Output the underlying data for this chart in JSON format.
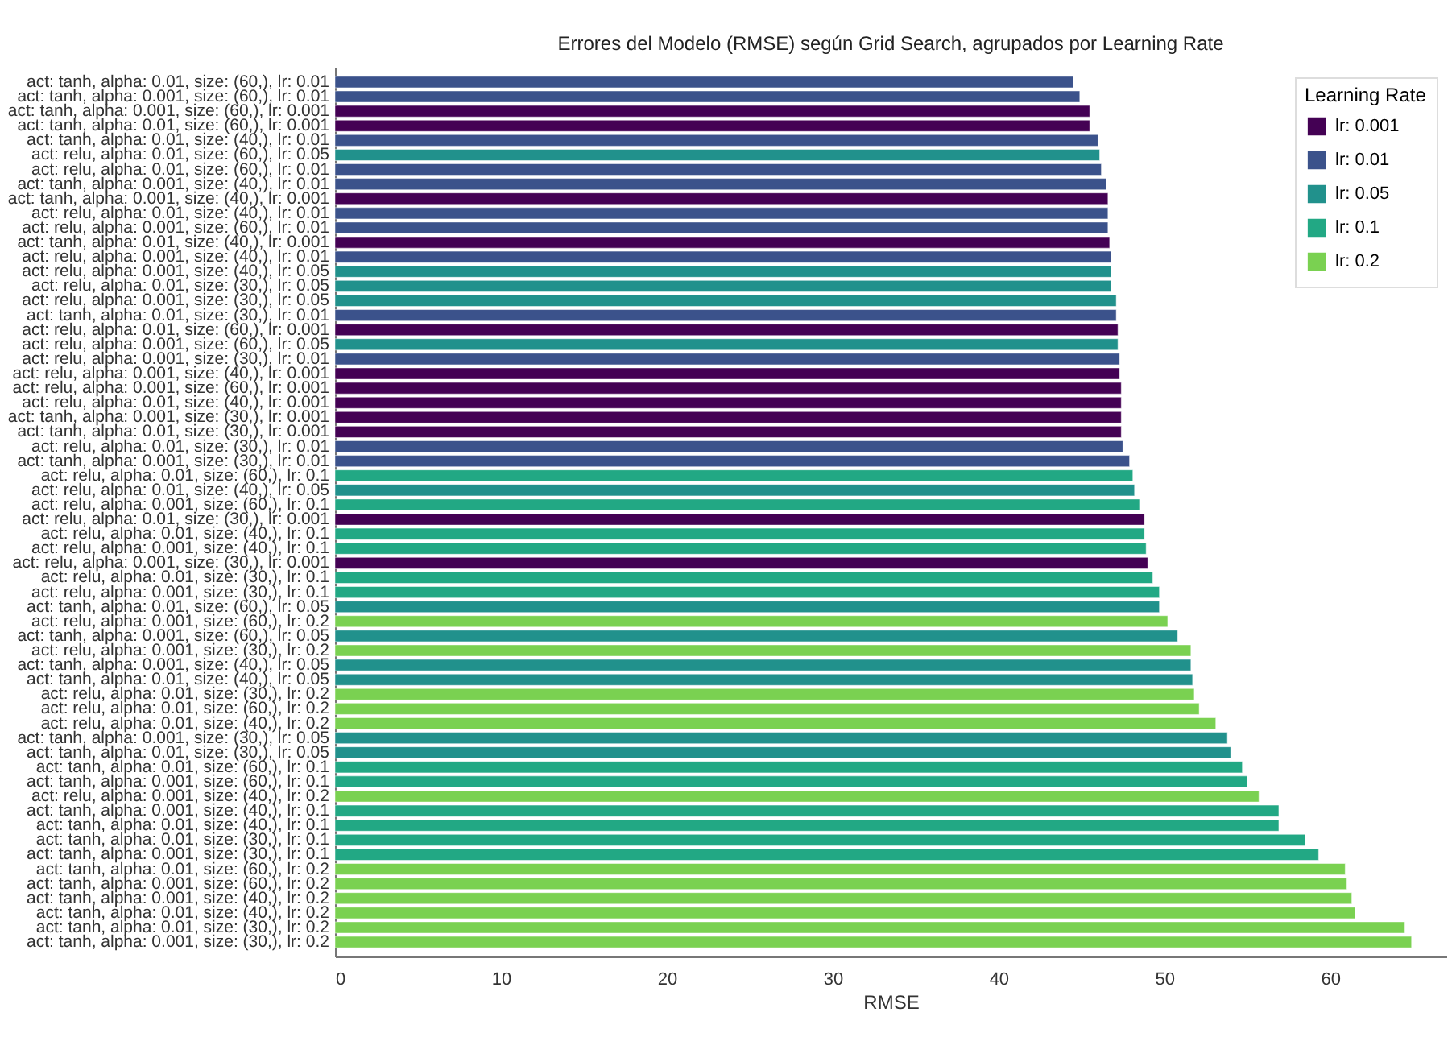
{
  "chart_data": {
    "type": "bar",
    "orientation": "horizontal",
    "title": "Errores del Modelo (RMSE) según Grid Search, agrupados por Learning Rate",
    "xlabel": "RMSE",
    "legend_title": "Learning Rate",
    "legend": "top right",
    "grid": false,
    "categories": [
      "act: tanh, alpha: 0.01, size: (60,), lr: 0.01",
      "act: tanh, alpha: 0.001, size: (60,), lr: 0.01",
      "act: tanh, alpha: 0.001, size: (60,), lr: 0.001",
      "act: tanh, alpha: 0.01, size: (60,), lr: 0.001",
      "act: tanh, alpha: 0.01, size: (40,), lr: 0.01",
      "act: relu, alpha: 0.01, size: (60,), lr: 0.05",
      "act: relu, alpha: 0.01, size: (60,), lr: 0.01",
      "act: tanh, alpha: 0.001, size: (40,), lr: 0.01",
      "act: tanh, alpha: 0.001, size: (40,), lr: 0.001",
      "act: relu, alpha: 0.01, size: (40,), lr: 0.01",
      "act: relu, alpha: 0.001, size: (60,), lr: 0.01",
      "act: tanh, alpha: 0.01, size: (40,), lr: 0.001",
      "act: relu, alpha: 0.001, size: (40,), lr: 0.01",
      "act: relu, alpha: 0.001, size: (40,), lr: 0.05",
      "act: relu, alpha: 0.01, size: (30,), lr: 0.05",
      "act: relu, alpha: 0.001, size: (30,), lr: 0.05",
      "act: tanh, alpha: 0.01, size: (30,), lr: 0.01",
      "act: relu, alpha: 0.01, size: (60,), lr: 0.001",
      "act: relu, alpha: 0.001, size: (60,), lr: 0.05",
      "act: relu, alpha: 0.001, size: (30,), lr: 0.01",
      "act: relu, alpha: 0.001, size: (40,), lr: 0.001",
      "act: relu, alpha: 0.001, size: (60,), lr: 0.001",
      "act: relu, alpha: 0.01, size: (40,), lr: 0.001",
      "act: tanh, alpha: 0.001, size: (30,), lr: 0.001",
      "act: tanh, alpha: 0.01, size: (30,), lr: 0.001",
      "act: relu, alpha: 0.01, size: (30,), lr: 0.01",
      "act: tanh, alpha: 0.001, size: (30,), lr: 0.01",
      "act: relu, alpha: 0.01, size: (60,), lr: 0.1",
      "act: relu, alpha: 0.01, size: (40,), lr: 0.05",
      "act: relu, alpha: 0.001, size: (60,), lr: 0.1",
      "act: relu, alpha: 0.01, size: (30,), lr: 0.001",
      "act: relu, alpha: 0.01, size: (40,), lr: 0.1",
      "act: relu, alpha: 0.001, size: (40,), lr: 0.1",
      "act: relu, alpha: 0.001, size: (30,), lr: 0.001",
      "act: relu, alpha: 0.01, size: (30,), lr: 0.1",
      "act: relu, alpha: 0.001, size: (30,), lr: 0.1",
      "act: tanh, alpha: 0.01, size: (60,), lr: 0.05",
      "act: relu, alpha: 0.001, size: (60,), lr: 0.2",
      "act: tanh, alpha: 0.001, size: (60,), lr: 0.05",
      "act: relu, alpha: 0.001, size: (30,), lr: 0.2",
      "act: tanh, alpha: 0.001, size: (40,), lr: 0.05",
      "act: tanh, alpha: 0.01, size: (40,), lr: 0.05",
      "act: relu, alpha: 0.01, size: (30,), lr: 0.2",
      "act: relu, alpha: 0.01, size: (60,), lr: 0.2",
      "act: relu, alpha: 0.01, size: (40,), lr: 0.2",
      "act: tanh, alpha: 0.001, size: (30,), lr: 0.05",
      "act: tanh, alpha: 0.01, size: (30,), lr: 0.05",
      "act: tanh, alpha: 0.01, size: (60,), lr: 0.1",
      "act: tanh, alpha: 0.001, size: (60,), lr: 0.1",
      "act: relu, alpha: 0.001, size: (40,), lr: 0.2",
      "act: tanh, alpha: 0.001, size: (40,), lr: 0.1",
      "act: tanh, alpha: 0.01, size: (40,), lr: 0.1",
      "act: tanh, alpha: 0.01, size: (30,), lr: 0.1",
      "act: tanh, alpha: 0.001, size: (30,), lr: 0.1",
      "act: tanh, alpha: 0.01, size: (60,), lr: 0.2",
      "act: tanh, alpha: 0.001, size: (60,), lr: 0.2",
      "act: tanh, alpha: 0.001, size: (40,), lr: 0.2",
      "act: tanh, alpha: 0.01, size: (40,), lr: 0.2",
      "act: tanh, alpha: 0.01, size: (30,), lr: 0.2",
      "act: tanh, alpha: 0.001, size: (30,), lr: 0.2"
    ],
    "series": [
      {
        "name": "lr: 0.001",
        "color": "#440154",
        "values": [
          null,
          null,
          45.5,
          45.5,
          null,
          null,
          null,
          null,
          46.6,
          null,
          null,
          46.7,
          null,
          null,
          null,
          null,
          null,
          47.2,
          null,
          null,
          47.3,
          47.4,
          47.4,
          47.4,
          47.4,
          null,
          null,
          null,
          null,
          null,
          48.8,
          null,
          null,
          49.0,
          null,
          null,
          null,
          null,
          null,
          null,
          null,
          null,
          null,
          null,
          null,
          null,
          null,
          null,
          null,
          null,
          null,
          null,
          null,
          null,
          null,
          null,
          null,
          null,
          null,
          null
        ]
      },
      {
        "name": "lr: 0.01",
        "color": "#3b528b",
        "values": [
          44.5,
          44.9,
          null,
          null,
          46.0,
          null,
          46.2,
          46.5,
          null,
          46.6,
          46.6,
          null,
          46.8,
          null,
          null,
          null,
          47.1,
          null,
          null,
          47.3,
          null,
          null,
          null,
          null,
          null,
          47.5,
          47.9,
          null,
          null,
          null,
          null,
          null,
          null,
          null,
          null,
          null,
          null,
          null,
          null,
          null,
          null,
          null,
          null,
          null,
          null,
          null,
          null,
          null,
          null,
          null,
          null,
          null,
          null,
          null,
          null,
          null,
          null,
          null,
          null,
          null
        ]
      },
      {
        "name": "lr: 0.05",
        "color": "#21918c",
        "values": [
          null,
          null,
          null,
          null,
          null,
          46.1,
          null,
          null,
          null,
          null,
          null,
          null,
          null,
          46.8,
          46.8,
          47.1,
          null,
          null,
          47.2,
          null,
          null,
          null,
          null,
          null,
          null,
          null,
          null,
          null,
          48.2,
          null,
          null,
          null,
          null,
          null,
          null,
          null,
          49.7,
          null,
          50.8,
          null,
          51.6,
          51.7,
          null,
          null,
          null,
          53.8,
          54.0,
          null,
          null,
          null,
          null,
          null,
          null,
          null,
          null,
          null,
          null,
          null,
          null,
          null
        ]
      },
      {
        "name": "lr: 0.1",
        "color": "#22a884",
        "values": [
          null,
          null,
          null,
          null,
          null,
          null,
          null,
          null,
          null,
          null,
          null,
          null,
          null,
          null,
          null,
          null,
          null,
          null,
          null,
          null,
          null,
          null,
          null,
          null,
          null,
          null,
          null,
          48.1,
          null,
          48.5,
          null,
          48.8,
          48.9,
          null,
          49.3,
          49.7,
          null,
          null,
          null,
          null,
          null,
          null,
          null,
          null,
          null,
          null,
          null,
          54.7,
          55.0,
          null,
          56.9,
          56.9,
          58.5,
          59.3,
          null,
          null,
          null,
          null,
          null,
          null
        ]
      },
      {
        "name": "lr: 0.2",
        "color": "#7ad151",
        "values": [
          null,
          null,
          null,
          null,
          null,
          null,
          null,
          null,
          null,
          null,
          null,
          null,
          null,
          null,
          null,
          null,
          null,
          null,
          null,
          null,
          null,
          null,
          null,
          null,
          null,
          null,
          null,
          null,
          null,
          null,
          null,
          null,
          null,
          null,
          null,
          null,
          null,
          50.2,
          null,
          51.6,
          null,
          null,
          51.8,
          52.1,
          53.1,
          null,
          null,
          null,
          null,
          55.7,
          null,
          null,
          null,
          null,
          60.9,
          61.0,
          61.3,
          61.5,
          64.5,
          64.9
        ]
      }
    ],
    "xlim": [
      0,
      67
    ],
    "xticks": [
      0,
      10,
      20,
      30,
      40,
      50,
      60
    ]
  }
}
